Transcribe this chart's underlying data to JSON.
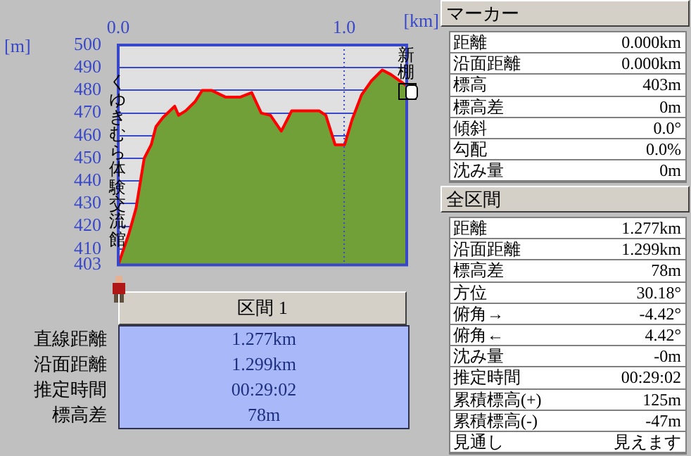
{
  "chart_data": [
    {
      "type": "area",
      "xlabel": "[km]",
      "ylabel": "[m]",
      "xlim": [
        0,
        1.277
      ],
      "ylim": [
        403,
        500
      ],
      "xticks": [
        {
          "value": 0,
          "label": "0.0"
        },
        {
          "value": 1,
          "label": "1.0"
        }
      ],
      "yticks": [
        403,
        410,
        420,
        430,
        440,
        450,
        460,
        470,
        480,
        490,
        500
      ],
      "grid": "y",
      "ref_lines": [
        {
          "axis": "x",
          "value": 1,
          "color": "#3848c8",
          "line_style": "dotted"
        }
      ],
      "x": [
        0,
        0.048,
        0.079,
        0.115,
        0.146,
        0.167,
        0.198,
        0.25,
        0.267,
        0.299,
        0.34,
        0.372,
        0.413,
        0.476,
        0.539,
        0.591,
        0.633,
        0.674,
        0.722,
        0.768,
        0.841,
        0.889,
        0.919,
        0.96,
        1.002,
        1.035,
        1.077,
        1.119,
        1.169,
        1.207,
        1.277
      ],
      "series": [
        {
          "color": "#72a038",
          "values": [
            403,
            417,
            428,
            450,
            456,
            464,
            468,
            473,
            469,
            471,
            475,
            480,
            480,
            477,
            477,
            479,
            470,
            469,
            462,
            471,
            471,
            471,
            469,
            456,
            456,
            467,
            478,
            484,
            489,
            487,
            482
          ]
        }
      ],
      "annotations": [
        "くゆきむら体験交流館",
        {
          "text": "新棚",
          "x": 1.277,
          "y": 482
        }
      ]
    },
    {
      "type": "other",
      "title": "区間 1",
      "annotations": [
        "直線距離",
        "1.277km",
        "沿面距離",
        "1.299km",
        "推定時間",
        "00:29:02",
        "標高差",
        "78m"
      ]
    },
    {
      "type": "other",
      "title": "マーカー",
      "annotations": [
        "距離",
        "0.000km",
        "沿面距離",
        "0.000km",
        "標高",
        "403m",
        "標高差",
        "0m",
        "傾斜",
        "0.0°",
        "勾配",
        "0.0%",
        "沈み量",
        "0m"
      ]
    },
    {
      "type": "other",
      "title": "全区間",
      "annotations": [
        "距離",
        "1.277km",
        "沿面距離",
        "1.299km",
        "標高差",
        "78m",
        "方位",
        "30.18°",
        "俯角→",
        "-4.42°",
        "俯角←",
        "4.42°",
        "沈み量",
        "-0m",
        "推定時間",
        "00:29:02",
        "累積標高(+)",
        "125m",
        "累積標高(-)",
        "-47m",
        "見通し",
        "見えます"
      ]
    }
  ]
}
